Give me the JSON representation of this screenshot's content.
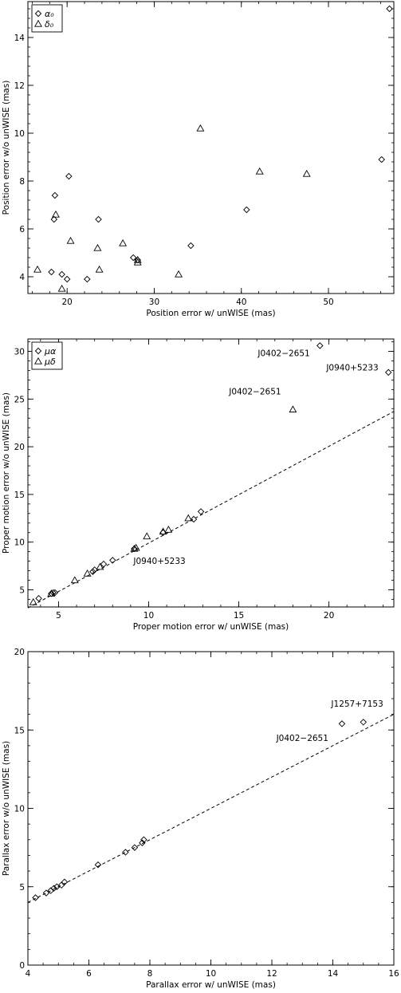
{
  "chart_data": [
    {
      "type": "scatter",
      "xlabel": "Position error w/ unWISE (mas)",
      "ylabel": "Position error w/o unWISE (mas)",
      "xlim": [
        15.5,
        57.5
      ],
      "ylim": [
        3.3,
        15.5
      ],
      "xticks": [
        20,
        30,
        40,
        50
      ],
      "yticks": [
        4,
        6,
        8,
        10,
        12,
        14
      ],
      "legend": {
        "placement": "top-left"
      },
      "series": [
        {
          "name": "α₀",
          "marker": "diamond",
          "x": [
            18.2,
            18.6,
            18.5,
            20.2,
            19.4,
            20.0,
            22.3,
            23.6,
            27.6,
            28.1,
            34.2,
            40.6,
            56.1,
            57.0
          ],
          "y": [
            4.2,
            7.4,
            6.4,
            8.2,
            4.1,
            3.9,
            3.9,
            6.4,
            4.8,
            4.7,
            5.3,
            6.8,
            8.9,
            15.2
          ]
        },
        {
          "name": "δ₀",
          "marker": "triangle",
          "x": [
            16.6,
            18.7,
            19.4,
            20.4,
            23.5,
            23.7,
            26.4,
            28.1,
            28.1,
            32.8,
            35.3,
            42.1,
            47.5
          ],
          "y": [
            4.3,
            6.6,
            3.5,
            5.5,
            5.2,
            4.3,
            5.4,
            4.6,
            4.7,
            4.1,
            10.2,
            8.4,
            8.3
          ]
        }
      ],
      "annotations": [],
      "reference_line": null
    },
    {
      "type": "scatter",
      "xlabel": "Proper motion error w/ unWISE (mas)",
      "ylabel": "Proper motion error w/o unWISE (mas)",
      "xlim": [
        3.3,
        23.6
      ],
      "ylim": [
        3.2,
        31.3
      ],
      "xticks": [
        5,
        10,
        15,
        20
      ],
      "yticks": [
        5,
        10,
        15,
        20,
        25,
        30
      ],
      "legend": {
        "placement": "top-left"
      },
      "series": [
        {
          "name": "μα",
          "marker": "diamond",
          "x": [
            3.9,
            4.6,
            4.7,
            4.8,
            6.9,
            7.0,
            7.5,
            8.0,
            9.2,
            10.8,
            12.5,
            12.9,
            19.5,
            23.3
          ],
          "y": [
            4.1,
            4.6,
            4.7,
            4.7,
            6.9,
            7.1,
            7.7,
            8.1,
            9.3,
            11.0,
            12.4,
            13.2,
            30.6,
            27.8
          ]
        },
        {
          "name": "μδ",
          "marker": "triangle",
          "x": [
            3.6,
            4.6,
            5.9,
            6.6,
            7.3,
            9.2,
            9.3,
            9.9,
            10.8,
            11.1,
            12.2,
            18.0
          ],
          "y": [
            3.7,
            4.6,
            6.0,
            6.7,
            7.4,
            9.3,
            9.4,
            10.6,
            11.1,
            11.3,
            12.5,
            23.9
          ]
        }
      ],
      "annotations": [
        {
          "text": "J0402−2651",
          "x": 17.5,
          "y": 29.5,
          "anchor": "middle"
        },
        {
          "text": "J0940+5233",
          "x": 21.3,
          "y": 28.0,
          "anchor": "middle"
        },
        {
          "text": "J0402−2651",
          "x": 15.9,
          "y": 25.5,
          "anchor": "middle"
        },
        {
          "text": "J0940+5233",
          "x": 10.6,
          "y": 7.7,
          "anchor": "middle"
        }
      ],
      "reference_line": {
        "x": [
          3.3,
          23.6
        ],
        "y": [
          3.1,
          23.7
        ]
      }
    },
    {
      "type": "scatter",
      "xlabel": "Parallax error w/ unWISE (mas)",
      "ylabel": "Parallax error w/o unWISE (mas)",
      "xlim": [
        4,
        16
      ],
      "ylim": [
        0,
        20
      ],
      "xticks": [
        4,
        6,
        8,
        10,
        12,
        14,
        16
      ],
      "yticks": [
        0,
        5,
        10,
        15,
        20
      ],
      "legend": null,
      "series": [
        {
          "name": "",
          "marker": "diamond",
          "x": [
            4.25,
            4.6,
            4.75,
            4.85,
            4.95,
            5.1,
            5.2,
            6.3,
            7.2,
            7.5,
            7.75,
            7.8,
            14.3,
            15.0
          ],
          "y": [
            4.3,
            4.6,
            4.75,
            4.9,
            5.0,
            5.1,
            5.3,
            6.4,
            7.2,
            7.5,
            7.8,
            8.0,
            15.4,
            15.5
          ]
        }
      ],
      "annotations": [
        {
          "text": "J1257+7153",
          "x": 14.8,
          "y": 16.5,
          "anchor": "middle"
        },
        {
          "text": "J0402−2651",
          "x": 13.0,
          "y": 14.3,
          "anchor": "middle"
        }
      ],
      "reference_line": {
        "x": [
          4,
          16
        ],
        "y": [
          4,
          16
        ]
      }
    }
  ]
}
